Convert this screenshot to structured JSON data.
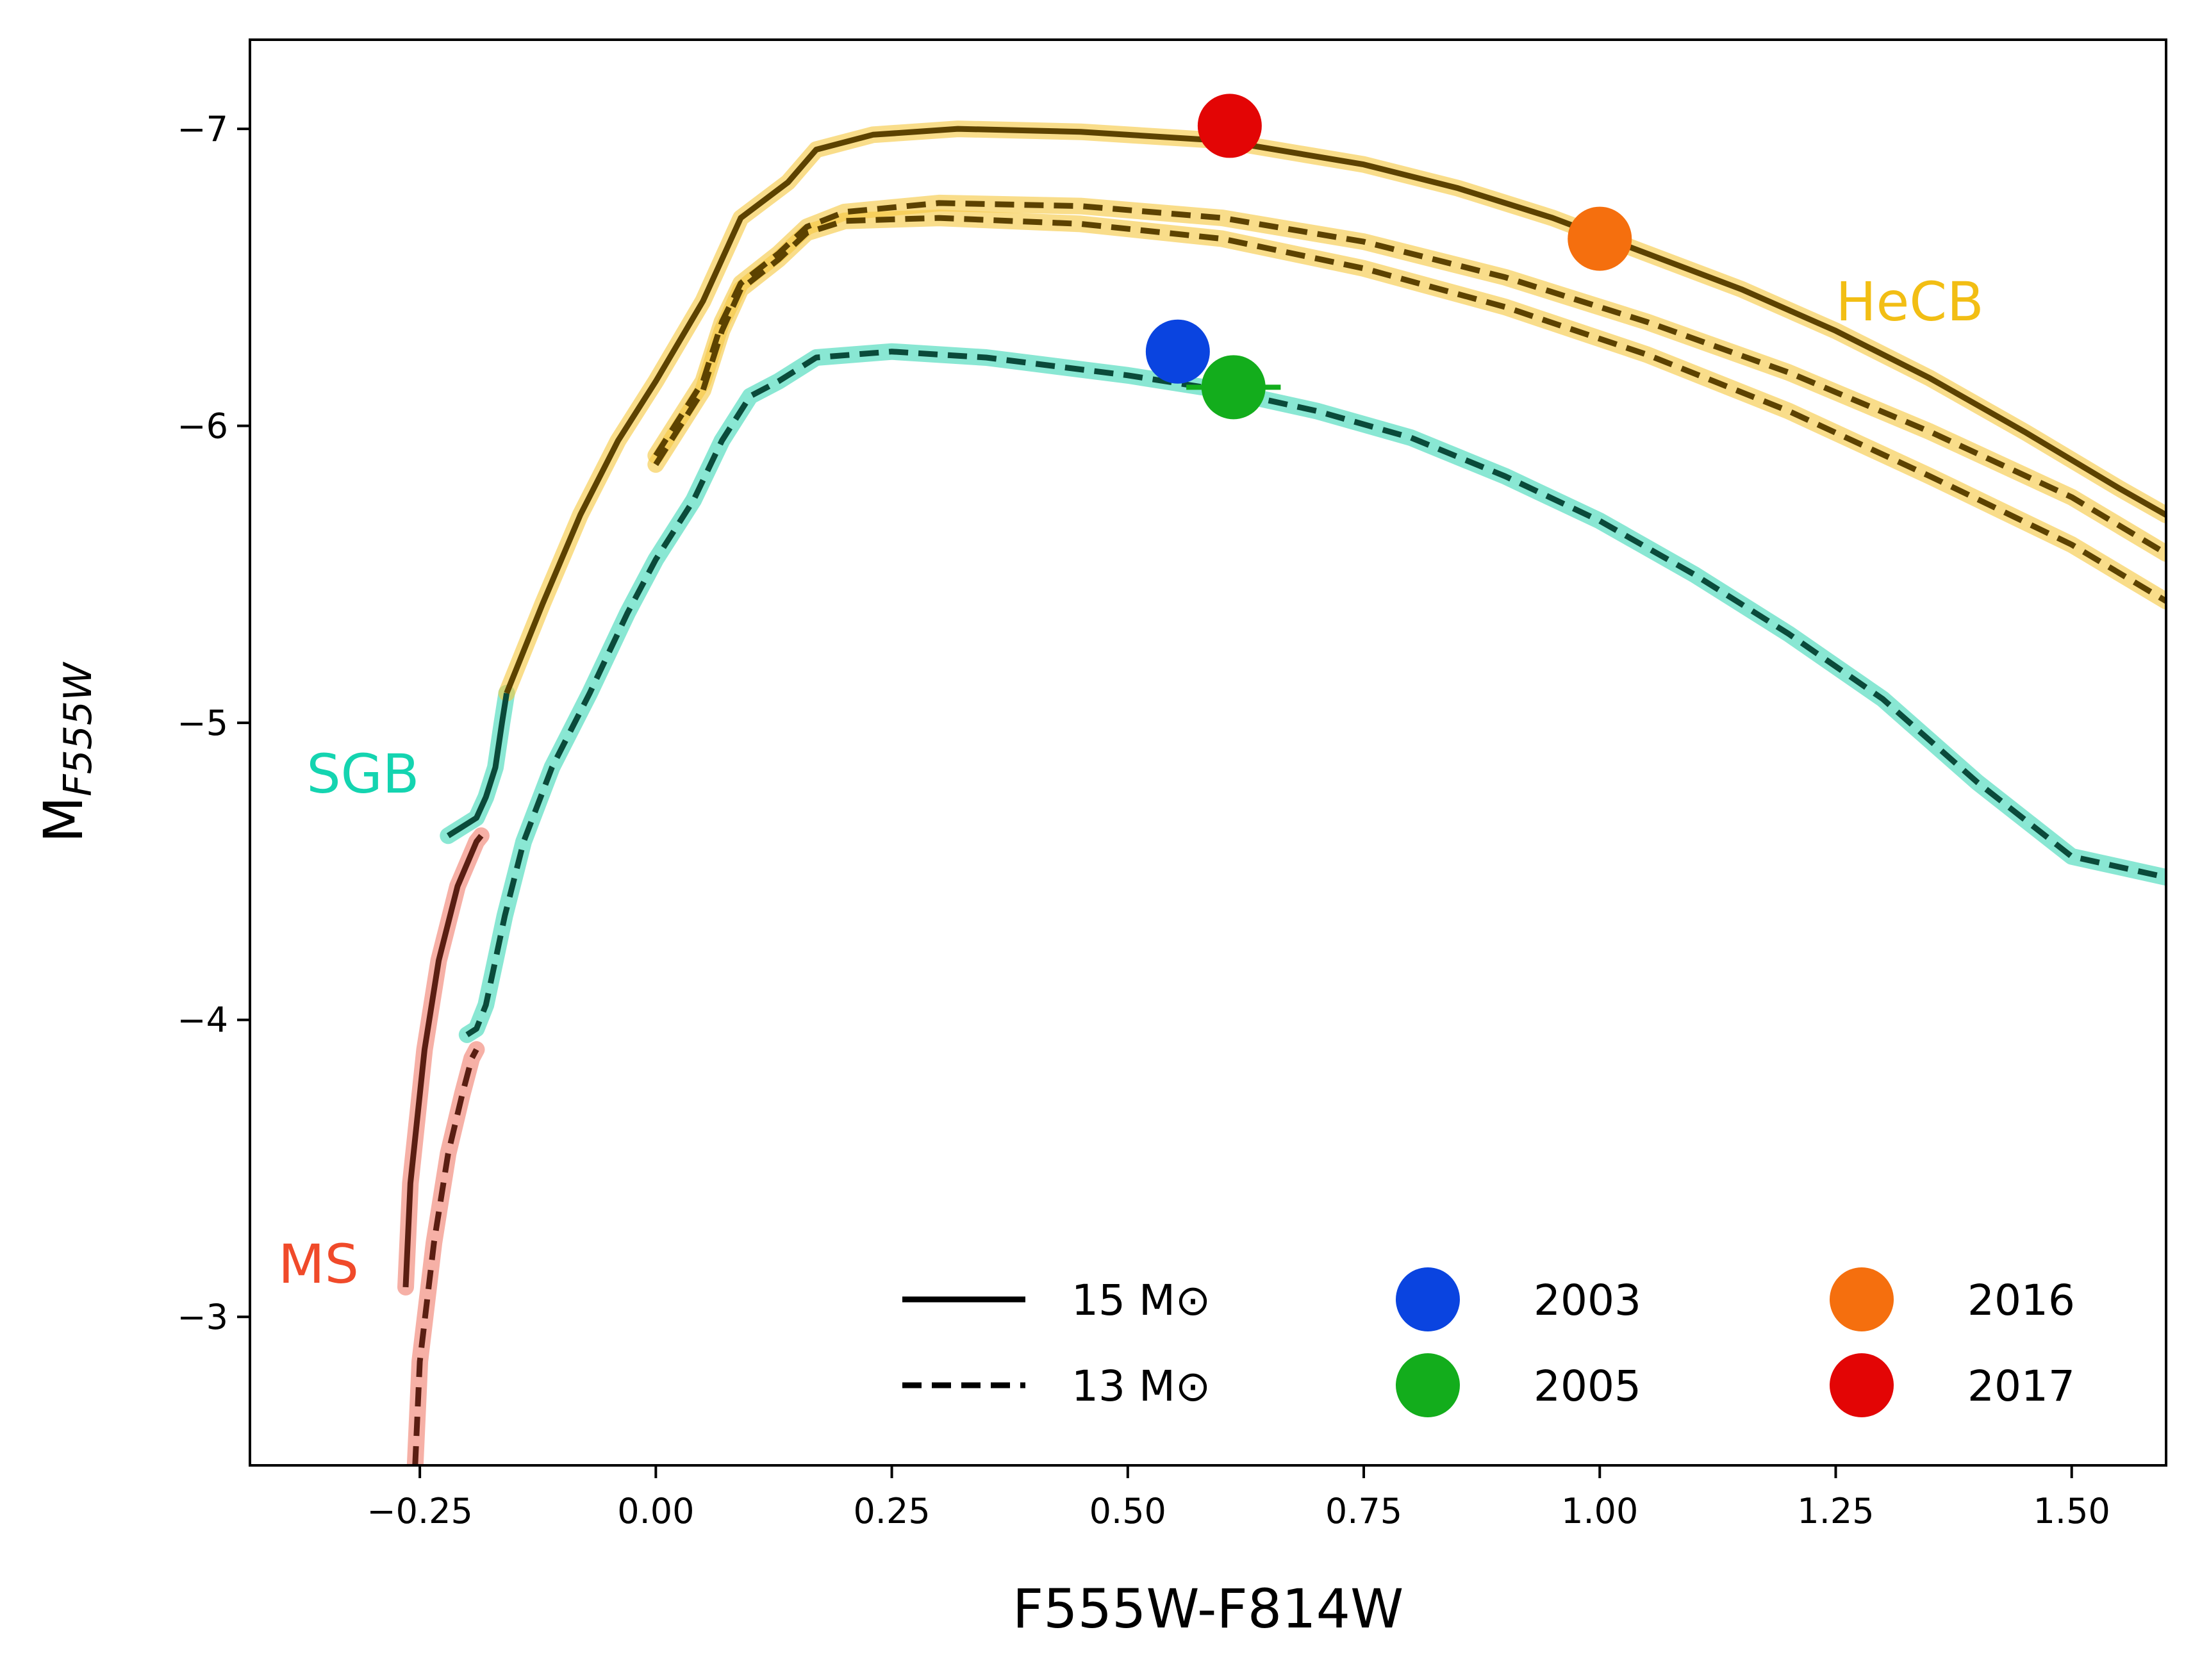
{
  "chart_data": {
    "type": "line",
    "xlabel": "F555W-F814W",
    "ylabel_main": "M",
    "ylabel_sub": "F555W",
    "xlim": [
      -0.43,
      1.6
    ],
    "ylim": [
      -2.5,
      -7.3
    ],
    "y_inverted": true,
    "x_ticks": [
      -0.25,
      0.0,
      0.25,
      0.5,
      0.75,
      1.0,
      1.25,
      1.5
    ],
    "x_tick_labels": [
      "−0.25",
      "0.00",
      "0.25",
      "0.50",
      "0.75",
      "1.00",
      "1.25",
      "1.50"
    ],
    "y_ticks": [
      -3,
      -4,
      -5,
      -6,
      -7
    ],
    "y_tick_labels": [
      "−3",
      "−4",
      "−5",
      "−6",
      "−7"
    ],
    "grid": false,
    "phase_colors": {
      "MS": "#f08070",
      "SGB": "#40d8b8",
      "HeCB": "#f5c842"
    },
    "region_labels": [
      {
        "text": "MS",
        "x": -0.4,
        "y": -3.18,
        "color": "#f04a2a"
      },
      {
        "text": "SGB",
        "x": -0.37,
        "y": -4.83,
        "color": "#14d4b0"
      },
      {
        "text": "HeCB",
        "x": 1.25,
        "y": -6.42,
        "color": "#f2be14"
      }
    ],
    "series": [
      {
        "name": "15 M⊙",
        "style": "solid",
        "segments": [
          {
            "phase": "MS",
            "points": [
              [
                -0.265,
                -3.1
              ],
              [
                -0.26,
                -3.45
              ],
              [
                -0.245,
                -3.9
              ],
              [
                -0.23,
                -4.2
              ],
              [
                -0.21,
                -4.45
              ],
              [
                -0.19,
                -4.6
              ],
              [
                -0.185,
                -4.62
              ]
            ]
          },
          {
            "phase": "SGB",
            "points": [
              [
                -0.22,
                -4.62
              ],
              [
                -0.205,
                -4.65
              ],
              [
                -0.19,
                -4.68
              ],
              [
                -0.18,
                -4.75
              ],
              [
                -0.17,
                -4.85
              ],
              [
                -0.163,
                -5.0
              ],
              [
                -0.158,
                -5.1
              ]
            ]
          },
          {
            "phase": "HeCB",
            "points": [
              [
                -0.158,
                -5.1
              ],
              [
                -0.12,
                -5.4
              ],
              [
                -0.08,
                -5.7
              ],
              [
                -0.04,
                -5.95
              ],
              [
                0.0,
                -6.15
              ],
              [
                0.05,
                -6.42
              ],
              [
                0.09,
                -6.7
              ],
              [
                0.14,
                -6.82
              ],
              [
                0.17,
                -6.93
              ],
              [
                0.23,
                -6.98
              ],
              [
                0.32,
                -7.0
              ],
              [
                0.45,
                -6.99
              ],
              [
                0.6,
                -6.96
              ],
              [
                0.75,
                -6.88
              ],
              [
                0.85,
                -6.8
              ],
              [
                0.95,
                -6.7
              ],
              [
                1.05,
                -6.58
              ],
              [
                1.15,
                -6.46
              ],
              [
                1.25,
                -6.32
              ],
              [
                1.35,
                -6.16
              ],
              [
                1.45,
                -5.98
              ],
              [
                1.55,
                -5.79
              ],
              [
                1.6,
                -5.7
              ]
            ]
          }
        ]
      },
      {
        "name": "13 M⊙",
        "style": "dashed",
        "segments": [
          {
            "phase": "MS",
            "points": [
              [
                -0.255,
                -2.5
              ],
              [
                -0.25,
                -2.85
              ],
              [
                -0.235,
                -3.25
              ],
              [
                -0.22,
                -3.55
              ],
              [
                -0.205,
                -3.75
              ],
              [
                -0.195,
                -3.87
              ],
              [
                -0.19,
                -3.9
              ]
            ]
          },
          {
            "phase": "SGB",
            "points": [
              [
                -0.2,
                -3.95
              ],
              [
                -0.19,
                -3.97
              ],
              [
                -0.18,
                -4.05
              ],
              [
                -0.17,
                -4.2
              ],
              [
                -0.16,
                -4.35
              ],
              [
                -0.14,
                -4.6
              ],
              [
                -0.11,
                -4.85
              ],
              [
                -0.07,
                -5.1
              ],
              [
                -0.03,
                -5.37
              ],
              [
                0.0,
                -5.55
              ],
              [
                0.04,
                -5.75
              ],
              [
                0.07,
                -5.95
              ],
              [
                0.1,
                -6.1
              ],
              [
                0.13,
                -6.15
              ],
              [
                0.17,
                -6.23
              ],
              [
                0.25,
                -6.25
              ],
              [
                0.35,
                -6.23
              ],
              [
                0.5,
                -6.17
              ],
              [
                0.6,
                -6.12
              ],
              [
                0.7,
                -6.05
              ],
              [
                0.8,
                -5.96
              ],
              [
                0.9,
                -5.83
              ],
              [
                1.0,
                -5.68
              ],
              [
                1.1,
                -5.5
              ],
              [
                1.2,
                -5.3
              ],
              [
                1.3,
                -5.08
              ],
              [
                1.4,
                -4.8
              ],
              [
                1.5,
                -4.55
              ],
              [
                1.6,
                -4.48
              ]
            ]
          },
          {
            "phase": "HeCB",
            "points": [
              [
                0.0,
                -5.9
              ],
              [
                0.02,
                -6.0
              ],
              [
                0.05,
                -6.15
              ],
              [
                0.07,
                -6.35
              ],
              [
                0.09,
                -6.48
              ],
              [
                0.13,
                -6.58
              ],
              [
                0.16,
                -6.67
              ],
              [
                0.2,
                -6.72
              ],
              [
                0.3,
                -6.75
              ],
              [
                0.45,
                -6.74
              ],
              [
                0.6,
                -6.7
              ],
              [
                0.75,
                -6.62
              ],
              [
                0.9,
                -6.5
              ],
              [
                1.05,
                -6.35
              ],
              [
                1.2,
                -6.18
              ],
              [
                1.35,
                -5.98
              ],
              [
                1.5,
                -5.76
              ],
              [
                1.6,
                -5.57
              ]
            ]
          },
          {
            "phase": "HeCB",
            "points": [
              [
                0.0,
                -5.87
              ],
              [
                0.02,
                -5.97
              ],
              [
                0.05,
                -6.12
              ],
              [
                0.07,
                -6.32
              ],
              [
                0.09,
                -6.46
              ],
              [
                0.13,
                -6.56
              ],
              [
                0.16,
                -6.65
              ],
              [
                0.2,
                -6.69
              ],
              [
                0.3,
                -6.7
              ],
              [
                0.45,
                -6.68
              ],
              [
                0.6,
                -6.63
              ],
              [
                0.75,
                -6.53
              ],
              [
                0.9,
                -6.4
              ],
              [
                1.05,
                -6.24
              ],
              [
                1.2,
                -6.05
              ],
              [
                1.35,
                -5.83
              ],
              [
                1.5,
                -5.6
              ],
              [
                1.6,
                -5.41
              ]
            ]
          }
        ]
      }
    ],
    "observations": [
      {
        "label": "2003",
        "x": 0.553,
        "y": -6.25,
        "color": "#0a44e0"
      },
      {
        "label": "2005",
        "x": 0.612,
        "y": -6.13,
        "color": "#13ad1c",
        "xerr": 0.05
      },
      {
        "label": "2016",
        "x": 1.0,
        "y": -6.63,
        "color": "#f56f0e"
      },
      {
        "label": "2017",
        "x": 0.608,
        "y": -7.01,
        "color": "#e30505"
      }
    ],
    "legend": {
      "placement": "lower-right",
      "line_entries": [
        {
          "label": "15 M⊙",
          "style": "solid"
        },
        {
          "label": "13 M⊙",
          "style": "dashed"
        }
      ],
      "marker_entries": [
        "2003",
        "2005",
        "2016",
        "2017"
      ]
    }
  }
}
